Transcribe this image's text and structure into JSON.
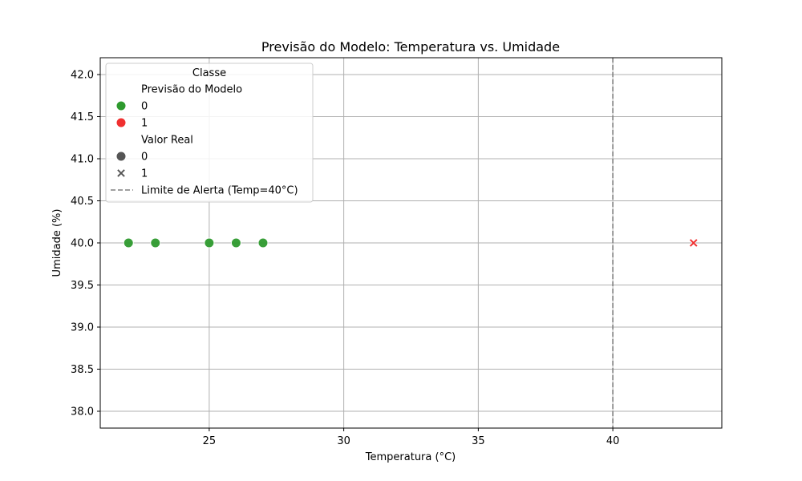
{
  "chart_data": {
    "type": "scatter",
    "title": "Previsão do Modelo: Temperatura vs. Umidade",
    "xlabel": "Temperatura (°C)",
    "ylabel": "Umidade (%)",
    "xlim": [
      20.95,
      44.05
    ],
    "ylim": [
      37.8,
      42.2
    ],
    "xticks": [
      25,
      30,
      35,
      40
    ],
    "xtick_labels": [
      "25",
      "30",
      "35",
      "40"
    ],
    "yticks": [
      38.0,
      38.5,
      39.0,
      39.5,
      40.0,
      40.5,
      41.0,
      41.5,
      42.0
    ],
    "ytick_labels": [
      "38.0",
      "38.5",
      "39.0",
      "39.5",
      "40.0",
      "40.5",
      "41.0",
      "41.5",
      "42.0"
    ],
    "grid": true,
    "points": [
      {
        "x": 22,
        "y": 40.0,
        "previsao": 0,
        "real": 0
      },
      {
        "x": 23,
        "y": 40.0,
        "previsao": 0,
        "real": 0
      },
      {
        "x": 25,
        "y": 40.0,
        "previsao": 0,
        "real": 0
      },
      {
        "x": 26,
        "y": 40.0,
        "previsao": 0,
        "real": 0
      },
      {
        "x": 27,
        "y": 40.0,
        "previsao": 0,
        "real": 0
      },
      {
        "x": 43,
        "y": 40.0,
        "previsao": 1,
        "real": 1
      }
    ],
    "threshold_line": {
      "x": 40,
      "label": "Limite de Alerta (Temp=40°C)",
      "color": "#808080"
    },
    "colors": {
      "0": "#2e9a2e",
      "1": "#f03030"
    },
    "legend": {
      "title": "Classe",
      "placement": "upper-left",
      "entries": [
        {
          "kind": "header",
          "label": "Previsão do Modelo"
        },
        {
          "kind": "color",
          "label": "0",
          "value": "0"
        },
        {
          "kind": "color",
          "label": "1",
          "value": "1"
        },
        {
          "kind": "header",
          "label": "Valor Real"
        },
        {
          "kind": "marker",
          "label": "0",
          "marker": "circle"
        },
        {
          "kind": "marker",
          "label": "1",
          "marker": "x"
        },
        {
          "kind": "line",
          "label": "Limite de Alerta (Temp=40°C)"
        }
      ]
    }
  }
}
